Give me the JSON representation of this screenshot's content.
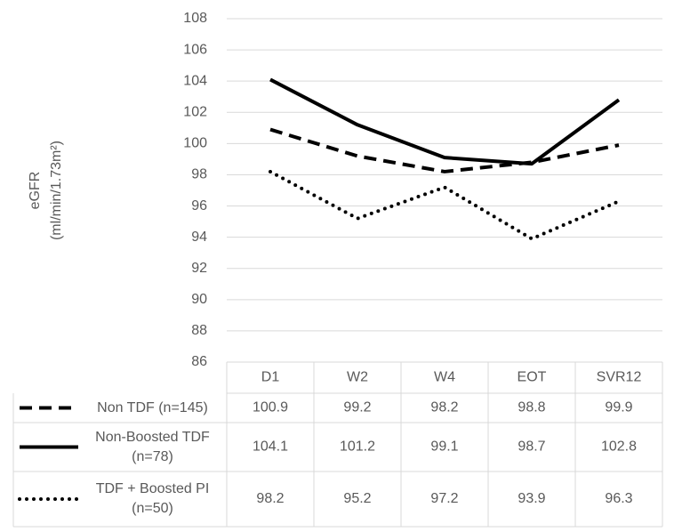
{
  "chart_data": {
    "type": "line",
    "y_label": "eGFR",
    "y_unit": "(ml/min/1.73m²)",
    "categories": [
      "D1",
      "W2",
      "W4",
      "EOT",
      "SVR12"
    ],
    "series": [
      {
        "name": "Non TDF (n=145)",
        "color": "#000000",
        "dash": "dashed",
        "values": [
          100.9,
          99.2,
          98.2,
          98.8,
          99.9
        ]
      },
      {
        "name": "Non-Boosted TDF (n=78)",
        "color": "#000000",
        "dash": "solid",
        "values": [
          104.1,
          101.2,
          99.1,
          98.7,
          102.8
        ]
      },
      {
        "name": "TDF + Boosted PI (n=50)",
        "color": "#000000",
        "dash": "dotted",
        "values": [
          98.2,
          95.2,
          97.2,
          93.9,
          96.3
        ]
      }
    ],
    "ylim": [
      86,
      108
    ],
    "yticks": [
      86,
      88,
      90,
      92,
      94,
      96,
      98,
      100,
      102,
      104,
      106,
      108
    ],
    "grid": true,
    "data_table": true
  }
}
